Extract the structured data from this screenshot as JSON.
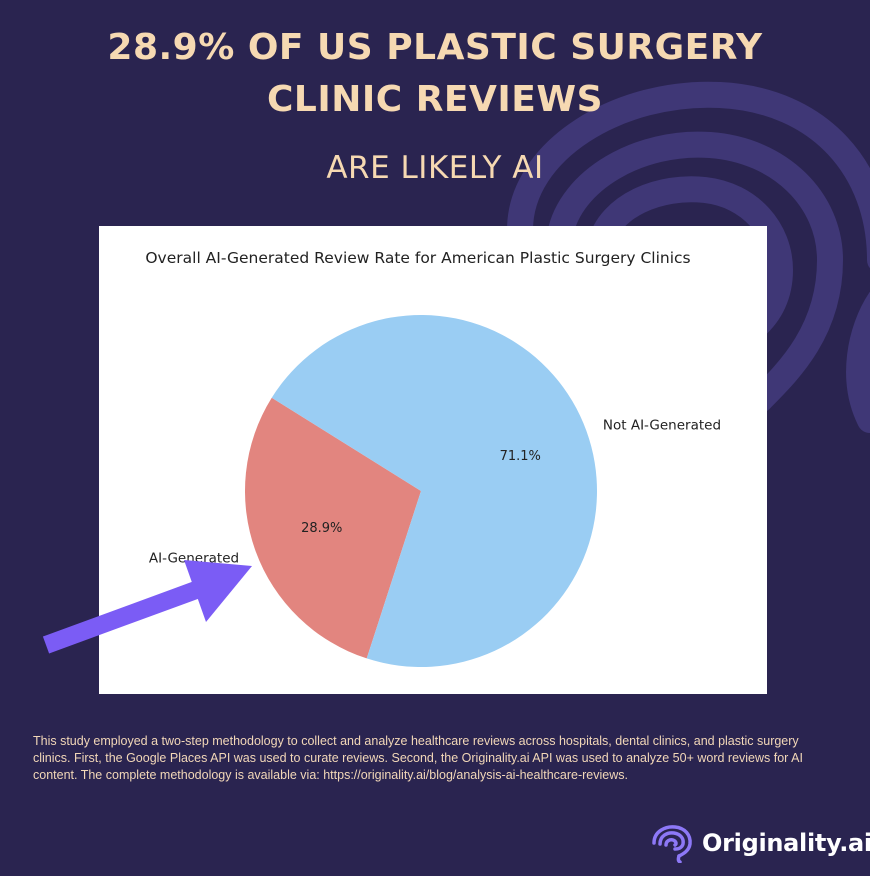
{
  "headline": {
    "line1": "28.9% OF US PLASTIC SURGERY",
    "line2": "CLINIC REVIEWS",
    "subline": "ARE LIKELY AI"
  },
  "chart_data": {
    "type": "pie",
    "title": "Overall AI-Generated Review Rate for American Plastic Surgery Clinics",
    "slices": [
      {
        "label": "AI-Generated",
        "value": 28.9,
        "pct_label": "28.9%",
        "color": "#e2857f"
      },
      {
        "label": "Not AI-Generated",
        "value": 71.1,
        "pct_label": "71.1%",
        "color": "#9acdf3"
      }
    ]
  },
  "methodology": "This study employed a two-step methodology to collect and analyze healthcare reviews across hospitals, dental clinics, and plastic surgery clinics. First, the Google Places API was used to curate reviews. Second, the Originality.ai API was used to analyze 50+ word reviews for AI content. The complete methodology is available via: https://originality.ai/blog/analysis-ai-healthcare-reviews.",
  "brand": {
    "name": "Originality.ai",
    "icon": "brain-icon"
  },
  "colors": {
    "background": "#2a2450",
    "headline": "#f6d9b2",
    "arrow": "#7b5cf5",
    "swirl": "#3f3776"
  }
}
